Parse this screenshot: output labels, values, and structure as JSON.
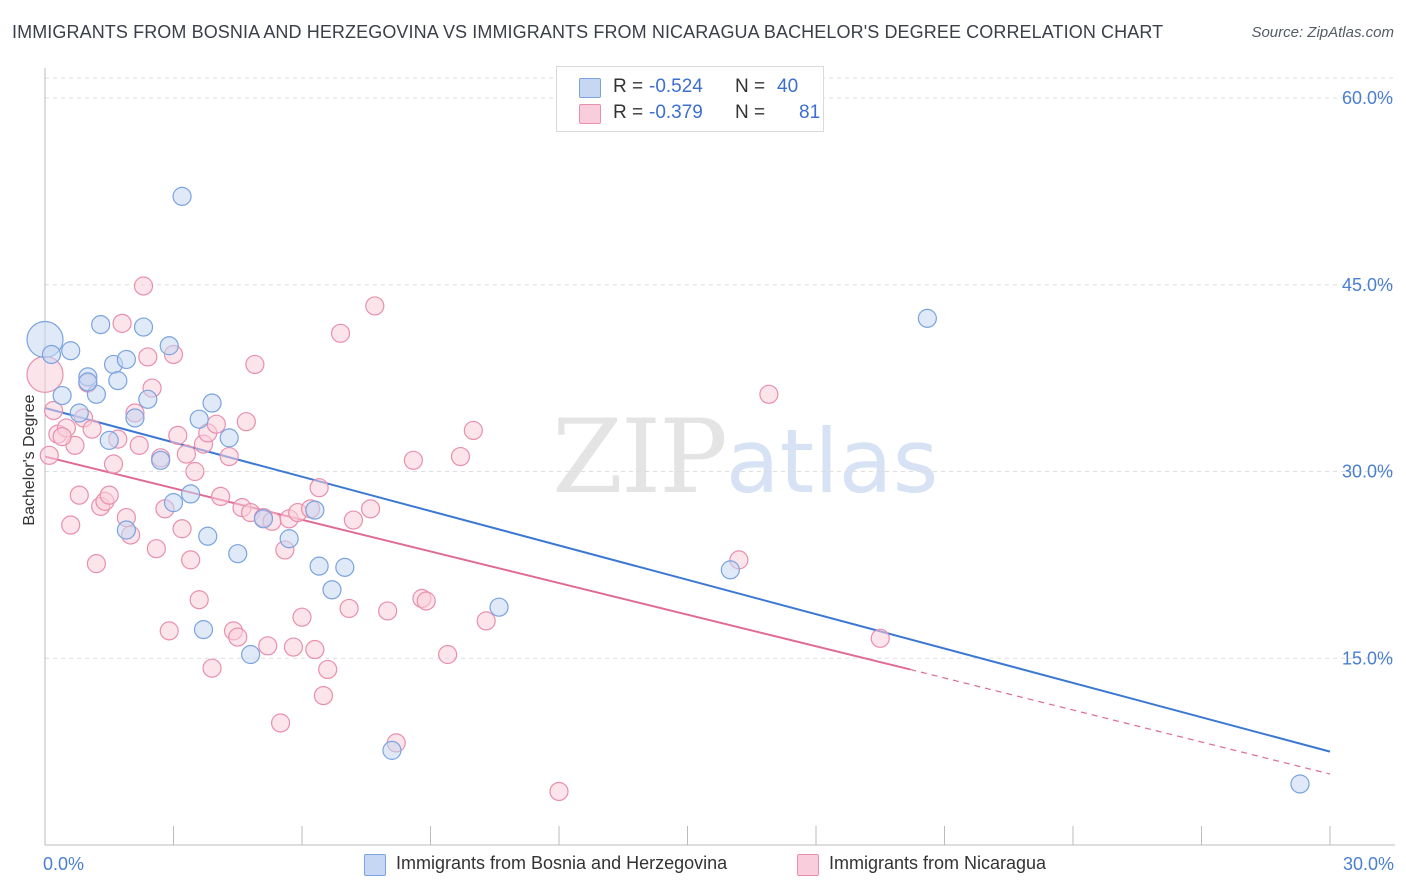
{
  "title": "IMMIGRANTS FROM BOSNIA AND HERZEGOVINA VS IMMIGRANTS FROM NICARAGUA BACHELOR'S DEGREE CORRELATION CHART",
  "source": "Source: ZipAtlas.com",
  "watermark": {
    "zip": "ZIP",
    "atlas": "atlas"
  },
  "legend": [
    {
      "r_label": "R =",
      "r_value": "-0.524",
      "n_label": "N =",
      "n_value": "40",
      "fill": "#c5d7f2",
      "stroke": "#7aa3df"
    },
    {
      "r_label": "R =",
      "r_value": "-0.379",
      "n_label": "N =",
      "n_value": "81",
      "fill": "#f9cddb",
      "stroke": "#e98fae"
    }
  ],
  "chart_data": {
    "type": "scatter",
    "title": "IMMIGRANTS FROM BOSNIA AND HERZEGOVINA VS IMMIGRANTS FROM NICARAGUA BACHELOR'S DEGREE CORRELATION CHART",
    "xlabel": "",
    "ylabel": "Bachelor's Degree",
    "xlim": [
      0,
      30
    ],
    "ylim": [
      0,
      60
    ],
    "x_tick_labels": [
      "0.0%",
      "30.0%"
    ],
    "y_ticks": [
      15,
      30,
      45,
      60
    ],
    "y_tick_labels": [
      "15.0%",
      "30.0%",
      "45.0%",
      "60.0%"
    ],
    "grid": true,
    "legend_position": "top-center",
    "series": [
      {
        "name": "Immigrants from Bosnia and Herzegovina",
        "color": "#7aa3df",
        "fill": "#c5d7f2",
        "trend": {
          "x": [
            0,
            30
          ],
          "y": [
            35.1,
            7.5
          ],
          "color": "#3b78d4"
        },
        "points": [
          [
            0.0,
            40.6
          ],
          [
            0.15,
            39.4
          ],
          [
            0.4,
            36.1
          ],
          [
            0.6,
            39.7
          ],
          [
            0.8,
            34.7
          ],
          [
            1.0,
            37.6
          ],
          [
            1.2,
            36.2
          ],
          [
            1.3,
            41.8
          ],
          [
            1.5,
            32.5
          ],
          [
            1.6,
            38.6
          ],
          [
            1.7,
            37.3
          ],
          [
            1.9,
            39.0
          ],
          [
            2.1,
            34.3
          ],
          [
            2.3,
            41.6
          ],
          [
            2.4,
            35.8
          ],
          [
            2.7,
            30.9
          ],
          [
            2.9,
            40.1
          ],
          [
            3.0,
            27.5
          ],
          [
            3.2,
            52.1
          ],
          [
            3.4,
            28.2
          ],
          [
            3.6,
            34.2
          ],
          [
            3.7,
            17.3
          ],
          [
            3.8,
            24.8
          ],
          [
            3.9,
            35.5
          ],
          [
            4.3,
            32.7
          ],
          [
            4.5,
            23.4
          ],
          [
            4.8,
            15.3
          ],
          [
            5.1,
            26.2
          ],
          [
            5.7,
            24.6
          ],
          [
            6.3,
            26.9
          ],
          [
            6.4,
            22.4
          ],
          [
            6.7,
            20.5
          ],
          [
            7.0,
            22.3
          ],
          [
            8.1,
            7.6
          ],
          [
            10.6,
            19.1
          ],
          [
            1.9,
            25.3
          ],
          [
            16.0,
            22.1
          ],
          [
            20.6,
            42.3
          ],
          [
            29.3,
            4.9
          ],
          [
            1.0,
            37.2
          ]
        ]
      },
      {
        "name": "Immigrants from Nicaragua",
        "color": "#e98fae",
        "fill": "#f9cddb",
        "trend": {
          "x": [
            0,
            20.2
          ],
          "y": [
            31.2,
            14.1
          ],
          "color": "#e06a93",
          "dashed_extension": {
            "x": [
              20.2,
              30
            ],
            "y": [
              14.1,
              5.7
            ]
          }
        },
        "points": [
          [
            0.0,
            37.8
          ],
          [
            0.1,
            31.3
          ],
          [
            0.2,
            34.9
          ],
          [
            0.3,
            33.0
          ],
          [
            0.5,
            33.5
          ],
          [
            0.6,
            25.7
          ],
          [
            0.7,
            32.1
          ],
          [
            0.8,
            28.1
          ],
          [
            0.9,
            34.3
          ],
          [
            1.0,
            37.1
          ],
          [
            1.1,
            33.4
          ],
          [
            1.2,
            22.6
          ],
          [
            1.3,
            27.2
          ],
          [
            1.4,
            27.6
          ],
          [
            1.5,
            28.1
          ],
          [
            1.6,
            30.6
          ],
          [
            1.7,
            32.6
          ],
          [
            1.8,
            41.9
          ],
          [
            1.9,
            26.3
          ],
          [
            2.0,
            24.9
          ],
          [
            2.1,
            34.7
          ],
          [
            2.2,
            32.1
          ],
          [
            2.3,
            44.9
          ],
          [
            2.4,
            39.2
          ],
          [
            2.5,
            36.7
          ],
          [
            2.6,
            23.8
          ],
          [
            2.7,
            31.1
          ],
          [
            2.8,
            27.0
          ],
          [
            2.9,
            17.2
          ],
          [
            3.0,
            39.4
          ],
          [
            3.1,
            32.9
          ],
          [
            3.2,
            25.4
          ],
          [
            3.3,
            31.4
          ],
          [
            3.4,
            22.9
          ],
          [
            3.5,
            30.0
          ],
          [
            3.6,
            19.7
          ],
          [
            3.7,
            32.2
          ],
          [
            3.8,
            33.1
          ],
          [
            3.9,
            14.2
          ],
          [
            4.0,
            33.8
          ],
          [
            4.1,
            28.0
          ],
          [
            4.3,
            31.2
          ],
          [
            4.4,
            17.2
          ],
          [
            4.5,
            16.7
          ],
          [
            4.6,
            27.1
          ],
          [
            4.7,
            34.0
          ],
          [
            4.8,
            26.7
          ],
          [
            4.9,
            38.6
          ],
          [
            5.1,
            26.3
          ],
          [
            5.2,
            16.0
          ],
          [
            5.3,
            26.0
          ],
          [
            5.5,
            9.8
          ],
          [
            5.6,
            23.7
          ],
          [
            5.7,
            26.2
          ],
          [
            5.8,
            15.9
          ],
          [
            5.9,
            26.7
          ],
          [
            6.0,
            18.3
          ],
          [
            6.2,
            27.0
          ],
          [
            6.3,
            15.7
          ],
          [
            6.4,
            28.7
          ],
          [
            6.5,
            12.0
          ],
          [
            6.6,
            14.1
          ],
          [
            6.9,
            41.1
          ],
          [
            7.1,
            19.0
          ],
          [
            7.2,
            26.1
          ],
          [
            7.6,
            27.0
          ],
          [
            7.7,
            43.3
          ],
          [
            8.0,
            18.8
          ],
          [
            8.2,
            8.2
          ],
          [
            8.6,
            30.9
          ],
          [
            8.8,
            19.8
          ],
          [
            8.9,
            19.6
          ],
          [
            9.4,
            15.3
          ],
          [
            9.7,
            31.2
          ],
          [
            10.0,
            33.3
          ],
          [
            10.3,
            18.0
          ],
          [
            12.0,
            4.3
          ],
          [
            16.2,
            22.9
          ],
          [
            16.9,
            36.2
          ],
          [
            19.5,
            16.6
          ],
          [
            0.4,
            32.8
          ]
        ]
      }
    ]
  }
}
